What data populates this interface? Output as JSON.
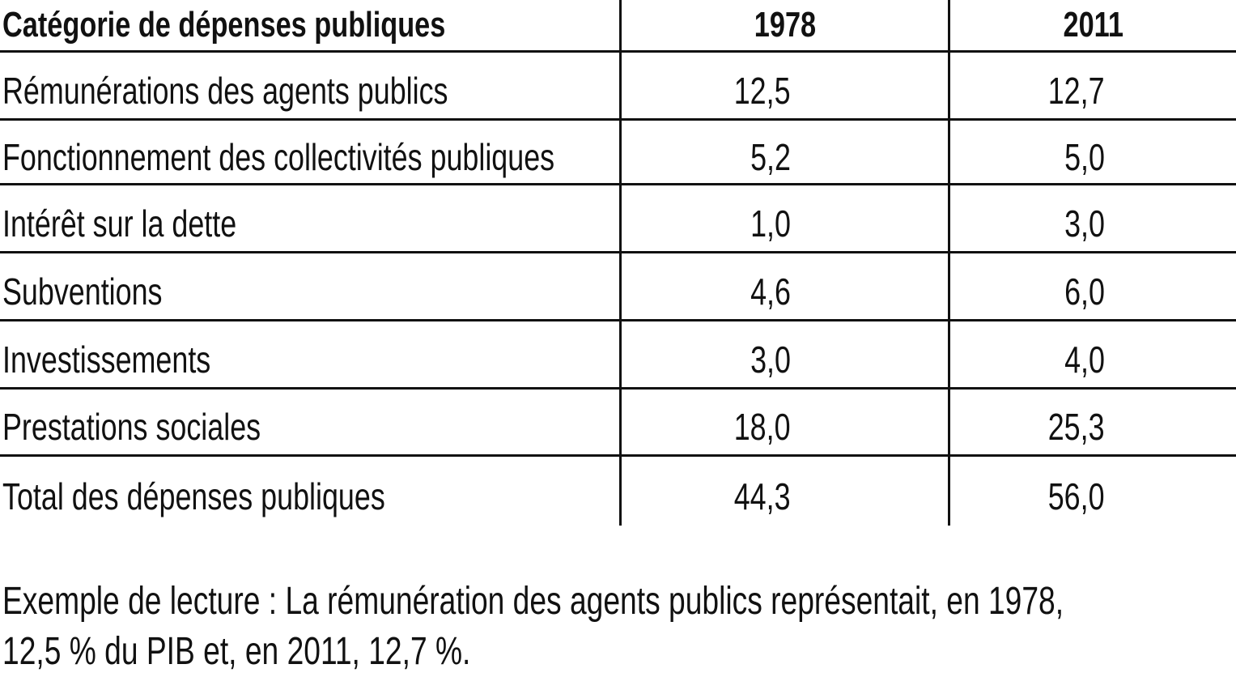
{
  "chart_data": {
    "type": "table",
    "columns": [
      "Catégorie de dépenses publiques",
      "1978",
      "2011"
    ],
    "rows": [
      {
        "category": "Rémunérations des agents publics",
        "v1978": "12,5",
        "v2011": "12,7"
      },
      {
        "category": "Fonctionnement des collectivités publiques",
        "v1978": "5,2",
        "v2011": "5,0"
      },
      {
        "category": "Intérêt sur la dette",
        "v1978": "1,0",
        "v2011": "3,0"
      },
      {
        "category": "Subventions",
        "v1978": "4,6",
        "v2011": "6,0"
      },
      {
        "category": "Investissements",
        "v1978": "3,0",
        "v2011": "4,0"
      },
      {
        "category": "Prestations sociales",
        "v1978": "18,0",
        "v2011": "25,3"
      },
      {
        "category": "Total des dépenses publiques",
        "v1978": "44,3",
        "v2011": "56,0"
      }
    ]
  },
  "note": {
    "line1": "Exemple de lecture : La rémunération des agents publics représentait, en 1978,",
    "line2": "12,5 % du PIB et, en 2011, 12,7 %."
  }
}
